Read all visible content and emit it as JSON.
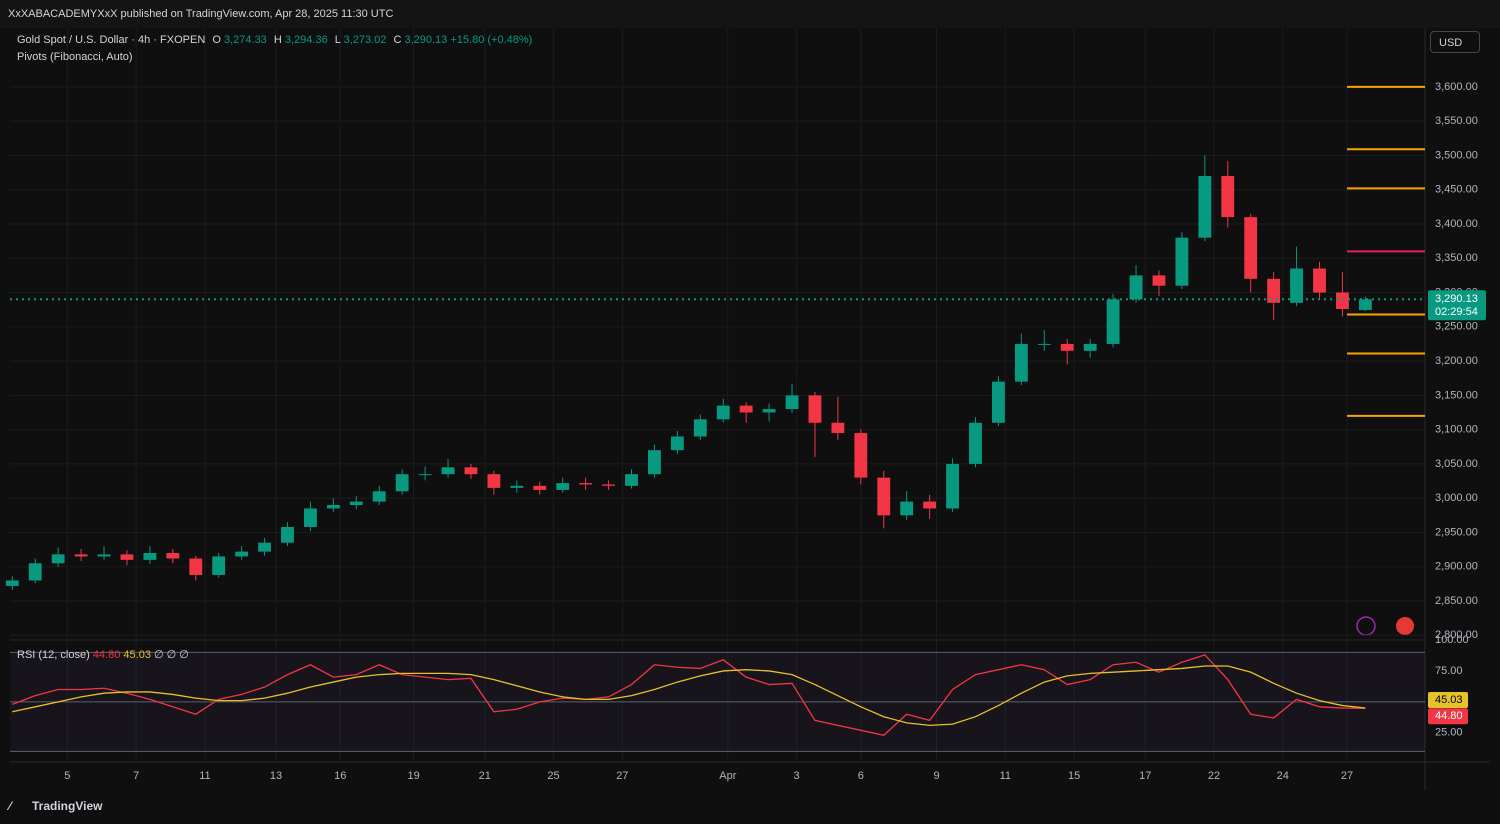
{
  "header": {
    "published": "XxXABACADEMYXxX published on TradingView.com, Apr 28, 2025 11:30 UTC",
    "brand": "TradingView"
  },
  "chart_data": [
    {
      "type": "candlestick",
      "title": "Gold Spot / U.S. Dollar · 4h · FXOPEN",
      "indicator": "Pivots (Fibonacci, Auto)",
      "currency": "USD",
      "legend": [
        {
          "key": "O",
          "label": "3,274.33"
        },
        {
          "key": "H",
          "label": "3,294.36"
        },
        {
          "key": "L",
          "label": "3,273.02"
        },
        {
          "key": "C",
          "label": "3,290.13"
        }
      ],
      "change": "+15.80 (+0.48%)",
      "last_label": "3,290.13",
      "countdown": "02:29:54",
      "up_color": "#089981",
      "down_color": "#f23645",
      "open": [
        2872,
        2880,
        2905,
        2918,
        2915,
        2918,
        2910,
        2920,
        2912,
        2888,
        2915,
        2922,
        2935,
        2958,
        2985,
        2990,
        2995,
        3010,
        3035,
        3035,
        3045,
        3035,
        3015,
        3018,
        3012,
        3022,
        3020,
        3018,
        3035,
        3070,
        3090,
        3115,
        3135,
        3125,
        3130,
        3150,
        3110,
        3095,
        3030,
        2975,
        2995,
        2985,
        3050,
        3110,
        3170,
        3225,
        3225,
        3215,
        3225,
        3290,
        3325,
        3310,
        3380,
        3470,
        3410,
        3320,
        3285,
        3335,
        3300,
        3274.33
      ],
      "high": [
        2886,
        2912,
        2928,
        2926,
        2930,
        2924,
        2930,
        2926,
        2916,
        2920,
        2930,
        2942,
        2965,
        2995,
        3000,
        3003,
        3018,
        3042,
        3046,
        3057,
        3050,
        3040,
        3026,
        3024,
        3030,
        3030,
        3026,
        3042,
        3078,
        3098,
        3122,
        3145,
        3140,
        3138,
        3167,
        3155,
        3148,
        3100,
        3040,
        3010,
        3005,
        3058,
        3118,
        3178,
        3240,
        3245,
        3232,
        3232,
        3298,
        3340,
        3332,
        3388,
        3500,
        3492,
        3415,
        3330,
        3367,
        3345,
        3330,
        3294.36
      ],
      "low": [
        2866,
        2876,
        2900,
        2908,
        2910,
        2902,
        2904,
        2905,
        2880,
        2884,
        2910,
        2916,
        2930,
        2952,
        2980,
        2984,
        2990,
        3005,
        3026,
        3030,
        3028,
        3005,
        3008,
        3005,
        3008,
        3012,
        3012,
        3014,
        3030,
        3064,
        3085,
        3110,
        3110,
        3112,
        3124,
        3060,
        3085,
        3020,
        2956,
        2968,
        2970,
        2980,
        3045,
        3105,
        3165,
        3215,
        3195,
        3205,
        3220,
        3285,
        3295,
        3305,
        3375,
        3395,
        3300,
        3260,
        3280,
        3290,
        3265,
        3273.02
      ],
      "close": [
        2880,
        2905,
        2918,
        2915,
        2918,
        2910,
        2920,
        2912,
        2888,
        2915,
        2922,
        2935,
        2958,
        2985,
        2990,
        2995,
        3010,
        3035,
        3035,
        3045,
        3035,
        3015,
        3018,
        3012,
        3022,
        3020,
        3018,
        3035,
        3070,
        3090,
        3115,
        3135,
        3125,
        3130,
        3150,
        3110,
        3095,
        3030,
        2975,
        2995,
        2985,
        3050,
        3110,
        3170,
        3225,
        3225,
        3215,
        3225,
        3290,
        3325,
        3310,
        3380,
        3470,
        3410,
        3320,
        3285,
        3335,
        3300,
        3276,
        3290.13
      ],
      "xlim": [
        -0.1,
        61.6
      ],
      "xticks": [
        {
          "value": 2.4,
          "label": "5"
        },
        {
          "value": 5.4,
          "label": "7"
        },
        {
          "value": 8.4,
          "label": "11"
        },
        {
          "value": 11.5,
          "label": "13"
        },
        {
          "value": 14.3,
          "label": "16"
        },
        {
          "value": 17.5,
          "label": "19"
        },
        {
          "value": 20.6,
          "label": "21"
        },
        {
          "value": 23.6,
          "label": "25"
        },
        {
          "value": 26.6,
          "label": "27"
        },
        {
          "value": 31.2,
          "label": "Apr"
        },
        {
          "value": 34.2,
          "label": "3"
        },
        {
          "value": 37.0,
          "label": "6"
        },
        {
          "value": 40.3,
          "label": "9"
        },
        {
          "value": 43.3,
          "label": "11"
        },
        {
          "value": 46.3,
          "label": "15"
        },
        {
          "value": 49.4,
          "label": "17"
        },
        {
          "value": 52.4,
          "label": "22"
        },
        {
          "value": 55.4,
          "label": "24"
        },
        {
          "value": 58.2,
          "label": "27"
        }
      ],
      "ylim": [
        2796,
        3683
      ],
      "yticks": [
        {
          "value": 2800,
          "label": "2,800.00"
        },
        {
          "value": 2850,
          "label": "2,850.00"
        },
        {
          "value": 2900,
          "label": "2,900.00"
        },
        {
          "value": 2950,
          "label": "2,950.00"
        },
        {
          "value": 3000,
          "label": "3,000.00"
        },
        {
          "value": 3050,
          "label": "3,050.00"
        },
        {
          "value": 3100,
          "label": "3,100.00"
        },
        {
          "value": 3150,
          "label": "3,150.00"
        },
        {
          "value": 3200,
          "label": "3,200.00"
        },
        {
          "value": 3250,
          "label": "3,250.00"
        },
        {
          "value": 3300,
          "label": "3,300.00"
        },
        {
          "value": 3350,
          "label": "3,350.00"
        },
        {
          "value": 3400,
          "label": "3,400.00"
        },
        {
          "value": 3450,
          "label": "3,450.00"
        },
        {
          "value": 3500,
          "label": "3,500.00"
        },
        {
          "value": 3550,
          "label": "3,550.00"
        },
        {
          "value": 3600,
          "label": "3,600.00"
        }
      ],
      "grid": true,
      "pivots": {
        "levels": [
          3600,
          3509,
          3452,
          3360,
          3268,
          3211,
          3120
        ],
        "colors": [
          "#f7a600",
          "#f7a600",
          "#f7a600",
          "#e91e63",
          "#f7a600",
          "#f7a600",
          "#f7a600"
        ]
      }
    },
    {
      "type": "line",
      "title": "RSI (12, close)",
      "extra": "∅ ∅ ∅",
      "series": [
        {
          "color": "#f23645",
          "last_label": "44.80",
          "values": [
            48,
            55,
            60,
            60,
            61,
            57,
            52,
            46,
            40,
            52,
            56,
            62,
            72,
            80,
            70,
            72,
            80,
            72,
            70,
            68,
            69,
            42,
            44,
            50,
            53,
            52,
            54,
            64,
            80,
            78,
            77,
            84,
            70,
            64,
            65,
            35,
            31,
            27,
            23,
            40,
            35,
            60,
            72,
            76,
            80,
            76,
            64,
            68,
            80,
            82,
            74,
            82,
            88,
            68,
            40,
            37,
            52,
            46,
            45,
            44.8
          ]
        },
        {
          "color": "#e6c229",
          "last_label": "45.03",
          "values": [
            42,
            46,
            50,
            54,
            57,
            58,
            58,
            56,
            53,
            51,
            51,
            53,
            57,
            62,
            66,
            70,
            72,
            73,
            73,
            73,
            72,
            68,
            63,
            58,
            54,
            52,
            52,
            55,
            60,
            66,
            71,
            75,
            76,
            75,
            72,
            64,
            55,
            46,
            38,
            33,
            31,
            32,
            38,
            47,
            57,
            66,
            71,
            73,
            74,
            75,
            76,
            77,
            79,
            79,
            74,
            65,
            57,
            51,
            47,
            45.03
          ]
        }
      ],
      "xlim": [
        -0.1,
        61.6
      ],
      "ylim": [
        3,
        100
      ],
      "yticks": [
        {
          "value": 25,
          "label": "25.00"
        },
        {
          "value": 75,
          "label": "75.00"
        },
        {
          "value": 100,
          "label": "100.00"
        }
      ],
      "bands": [
        10,
        50,
        90
      ]
    }
  ]
}
